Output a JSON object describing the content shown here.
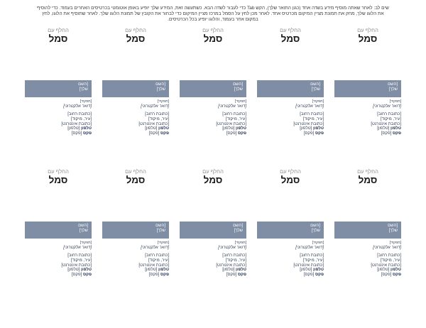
{
  "instructions": "שים לב: לאחר שאתה מוסיף מידע בשדה אחד (כגון התואר שלך), הקש Tab כדי לעבור לשדה הבא. כשתעשה זאת, המידע שלך יופיע באופן אוטומטי בכרטיסים האחרים בעמוד. כדי להוסיף את הלוגו שלך, מחק את תמונת מציין המיקום מכרטיס אחד. לאחר מכן לחץ על הסמל במרכז מציין המיקום כדי לבחור את הקובץ של תמונת הלוגו שלך. לאחר שתוסיף את הלוגו, לחץ במקום אחר בעמוד, והלוגו יופיע בכל הכרטיסים.",
  "layout": {
    "rows": 2,
    "cards_per_row": 5
  },
  "card": {
    "logo_caption_line1": "החלף עם",
    "logo_caption_line2": "סמל",
    "name_line1": "[השם",
    "name_line2": "שלך]",
    "job_title": "[תפקיד]",
    "email": "[דואר אלקטרוני]",
    "street": "[כתובת רחוב]",
    "city": "[עיר, מיקוד]",
    "web": "[כתובת אינטרנט]",
    "phone_label": "טלפון",
    "phone_value": "[טלפון]",
    "fax_label": "פקס",
    "fax_value": "[פקס]"
  },
  "colors": {
    "page_background": "#ffffff",
    "name_box_background": "#7f8ea5",
    "name_box_text": "#ffffff",
    "contact_text": "#2e3d54",
    "contact_bold": "#1f3050",
    "caption_gray": "#8e8e8e",
    "caption_dark": "#1a1a1a",
    "instructions_text": "#3c3c3c"
  }
}
